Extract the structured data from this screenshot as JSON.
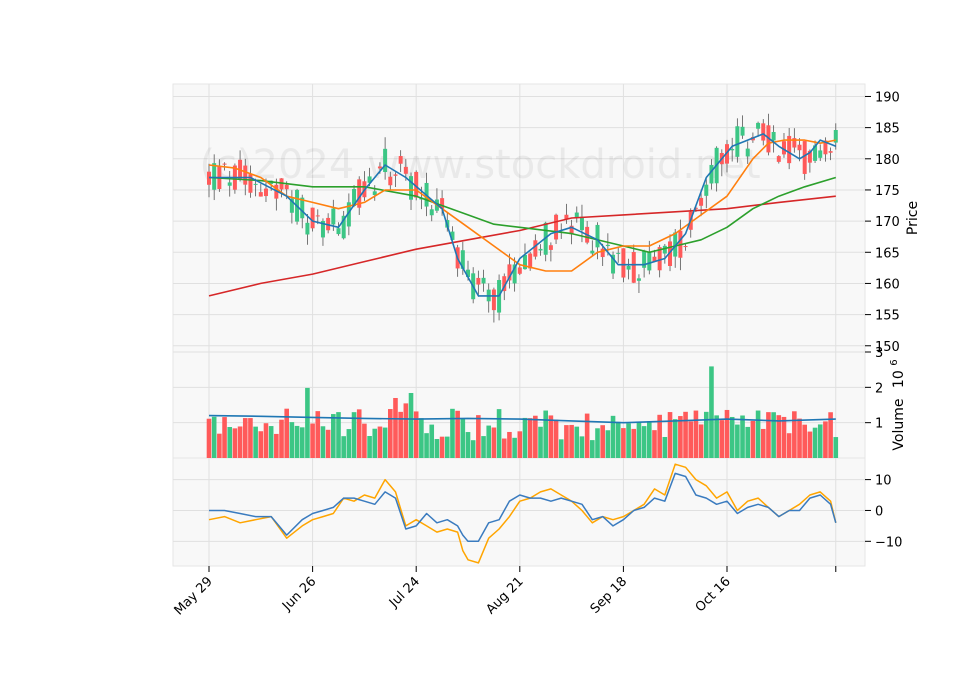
{
  "chart_data": {
    "type": "candlestick",
    "watermark": "(c)2024 www.stockdroid.net",
    "x_tick_labels": [
      "May 29",
      "Jun 26",
      "Jul 24",
      "Aug 21",
      "Sep 18",
      "Oct 16"
    ],
    "colors": {
      "up": "#3cc685",
      "down": "#ff5a5a",
      "ma_short": "#1f77b4",
      "ma_medium": "#ff7f0e",
      "ma_long": "#2ca02c",
      "ma_200": "#d62728",
      "volume_ma": "#1f77b4",
      "osc_fast": "#3a7bbf",
      "osc_slow": "#ffa500"
    },
    "price_panel": {
      "ylabel": "Price",
      "ylim": [
        149,
        192
      ],
      "ticks": [
        "150",
        "155",
        "160",
        "165",
        "170",
        "175",
        "180",
        "185",
        "190"
      ]
    },
    "volume_panel": {
      "ylabel": "Volume",
      "ylabel_exponent": "10",
      "ylabel_exponent_power": "6",
      "ylim": [
        0,
        3
      ],
      "ticks": [
        "1",
        "2",
        "3"
      ]
    },
    "oscillator_panel": {
      "ylim": [
        -18,
        17
      ],
      "ticks": [
        "10",
        "0",
        "−10"
      ]
    },
    "ma_short": {
      "day": [
        0,
        8,
        15,
        20,
        25,
        30,
        34,
        38,
        45,
        48,
        52,
        56,
        60,
        66,
        70,
        75,
        79,
        84,
        88,
        92,
        96,
        101,
        104,
        107,
        110,
        114,
        116,
        118,
        121
      ],
      "value": [
        177,
        177,
        174,
        170,
        169,
        175,
        179,
        177,
        172,
        164,
        158,
        158,
        164,
        168,
        169,
        167,
        163,
        163,
        164,
        168,
        177,
        182,
        183,
        184,
        182,
        180,
        181,
        183,
        182
      ]
    },
    "ma_medium": {
      "day": [
        0,
        5,
        10,
        15,
        20,
        25,
        30,
        34,
        40,
        45,
        50,
        55,
        60,
        65,
        70,
        75,
        80,
        85,
        90,
        95,
        100,
        105,
        108,
        111,
        115,
        118,
        121
      ],
      "value": [
        179,
        178.5,
        177,
        174,
        173,
        172,
        173,
        175,
        175,
        172,
        169,
        166,
        163,
        162,
        162,
        165,
        166,
        166,
        168,
        171,
        174,
        180,
        182.5,
        183,
        183,
        182.5,
        183
      ]
    },
    "ma_long": {
      "day": [
        0,
        10,
        20,
        30,
        40,
        50,
        55,
        60,
        70,
        80,
        85,
        90,
        95,
        100,
        105,
        110,
        115,
        121
      ],
      "value": [
        177,
        176.5,
        175.5,
        175.5,
        174,
        171,
        169.5,
        169,
        168,
        166,
        165,
        166,
        167,
        169,
        172,
        174,
        175.5,
        177
      ]
    },
    "ma_200": {
      "day": [
        0,
        10,
        20,
        30,
        40,
        50,
        60,
        70,
        80,
        90,
        100,
        110,
        121
      ],
      "value": [
        158,
        160,
        161.5,
        163.5,
        165.5,
        167,
        168.5,
        170.5,
        171,
        171.5,
        172,
        173,
        174
      ]
    },
    "volume_ma": {
      "day": [
        0,
        10,
        20,
        30,
        40,
        50,
        60,
        70,
        80,
        90,
        100,
        110,
        121
      ],
      "value": [
        1.2,
        1.18,
        1.15,
        1.12,
        1.1,
        1.12,
        1.1,
        1.05,
        1.0,
        1.05,
        1.1,
        1.05,
        1.1
      ]
    },
    "osc_fast": {
      "day": [
        0,
        3,
        6,
        9,
        12,
        15,
        18,
        20,
        22,
        24,
        26,
        28,
        30,
        32,
        34,
        36,
        38,
        40,
        42,
        44,
        46,
        48,
        49,
        50,
        52,
        54,
        56,
        58,
        60,
        62,
        64,
        66,
        68,
        70,
        72,
        74,
        76,
        78,
        80,
        82,
        84,
        86,
        88,
        90,
        92,
        94,
        96,
        98,
        100,
        102,
        104,
        106,
        108,
        110,
        112,
        114,
        116,
        118,
        120,
        121
      ],
      "value": [
        0,
        0,
        -1,
        -2,
        -2,
        -8,
        -3,
        -1,
        0,
        1,
        4,
        4,
        3,
        2,
        6,
        4,
        -6,
        -5,
        -1,
        -4,
        -3,
        -5,
        -8,
        -10,
        -10,
        -4,
        -3,
        3,
        5,
        4,
        4,
        3,
        4,
        3,
        2,
        -3,
        -2,
        -5,
        -3,
        0,
        1,
        4,
        3,
        12,
        11,
        5,
        4,
        2,
        3,
        -1,
        1,
        2,
        1,
        -2,
        0,
        0,
        4,
        5,
        2,
        -4
      ]
    },
    "osc_slow": {
      "day": [
        0,
        3,
        6,
        9,
        12,
        15,
        18,
        20,
        22,
        24,
        26,
        28,
        30,
        32,
        34,
        36,
        38,
        40,
        42,
        44,
        46,
        48,
        49,
        50,
        52,
        54,
        56,
        58,
        60,
        62,
        64,
        66,
        68,
        70,
        72,
        74,
        76,
        78,
        80,
        82,
        84,
        86,
        88,
        90,
        92,
        94,
        96,
        98,
        100,
        102,
        104,
        106,
        108,
        110,
        112,
        114,
        116,
        118,
        120,
        121
      ],
      "value": [
        -3,
        -2,
        -4,
        -3,
        -2,
        -9,
        -5,
        -3,
        -2,
        -1,
        4,
        3,
        5,
        4,
        10,
        6,
        -5,
        -3,
        -5,
        -7,
        -6,
        -7,
        -13,
        -16,
        -17,
        -9,
        -6,
        -2,
        3,
        4,
        6,
        7,
        5,
        3,
        0,
        -4,
        -2,
        -3,
        -2,
        0,
        2,
        7,
        5,
        15,
        14,
        10,
        8,
        4,
        6,
        0,
        3,
        4,
        1,
        -2,
        0,
        2,
        5,
        6,
        3,
        -4
      ]
    }
  }
}
